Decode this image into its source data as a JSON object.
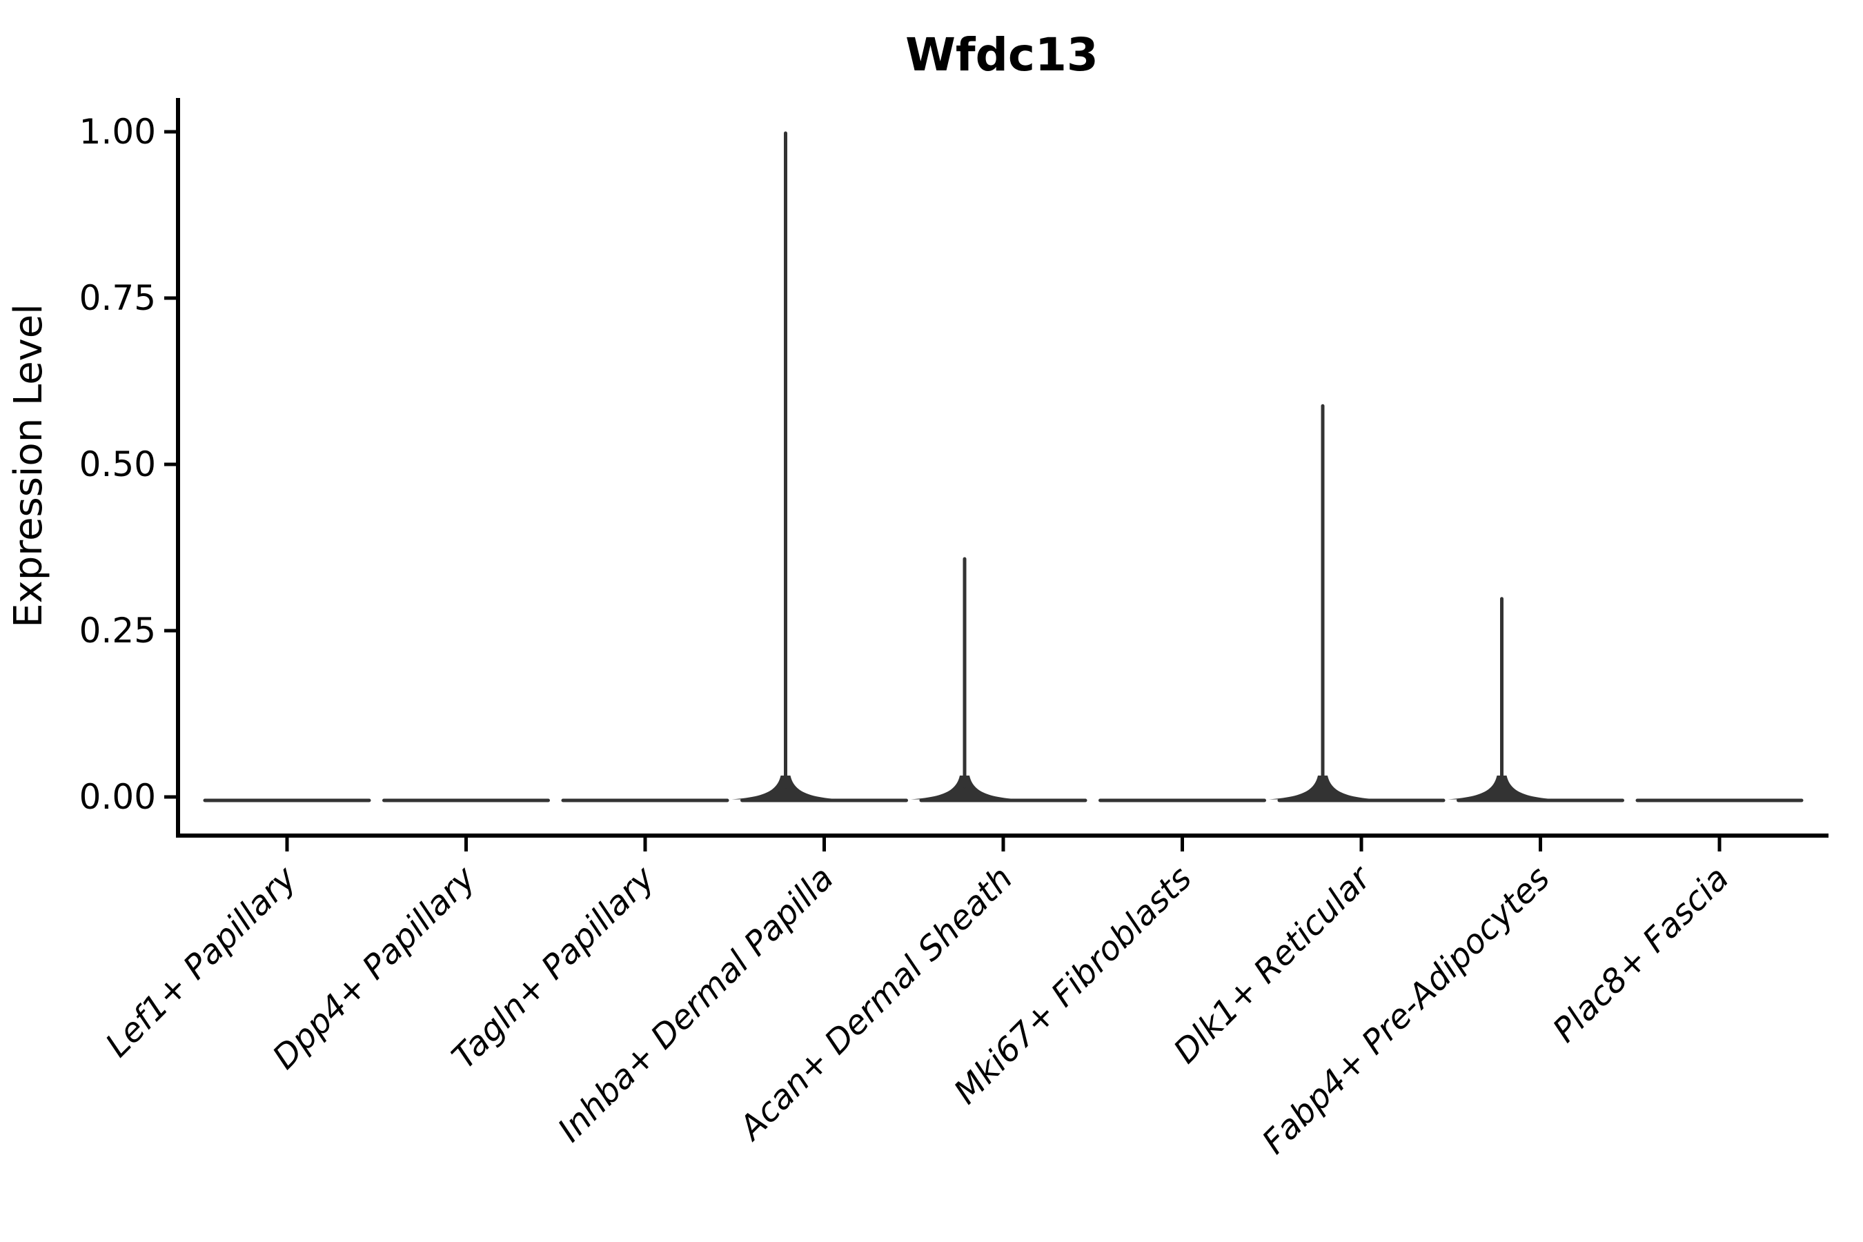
{
  "chart_data": {
    "type": "violin",
    "title": "Wfdc13",
    "ylabel": "Expression Level",
    "xlabel": "",
    "categories": [
      "Lef1+ Papillary",
      "Dpp4+ Papillary",
      "Tagln+ Papillary",
      "Inhba+ Dermal Papilla",
      "Acan+ Dermal Sheath",
      "Mki67+ Fibroblasts",
      "Dlk1+ Reticular",
      "Fabp4+ Pre-Adipocytes",
      "Plac8+ Fascia"
    ],
    "violins": [
      {
        "category": "Lef1+ Papillary",
        "baseline": 0.0,
        "max": 0.0
      },
      {
        "category": "Dpp4+ Papillary",
        "baseline": 0.0,
        "max": 0.0
      },
      {
        "category": "Tagln+ Papillary",
        "baseline": 0.0,
        "max": 0.0
      },
      {
        "category": "Inhba+ Dermal Papilla",
        "baseline": 0.0,
        "max": 1.0
      },
      {
        "category": "Acan+ Dermal Sheath",
        "baseline": 0.0,
        "max": 0.36
      },
      {
        "category": "Mki67+ Fibroblasts",
        "baseline": 0.0,
        "max": 0.0
      },
      {
        "category": "Dlk1+ Reticular",
        "baseline": 0.0,
        "max": 0.59
      },
      {
        "category": "Fabp4+ Pre-Adipocytes",
        "baseline": 0.0,
        "max": 0.3
      },
      {
        "category": "Plac8+ Fascia",
        "baseline": 0.0,
        "max": 0.0
      }
    ],
    "yticks": [
      0.0,
      0.25,
      0.5,
      0.75,
      1.0
    ],
    "ytick_labels": [
      "0.00",
      "0.25",
      "0.50",
      "0.75",
      "1.00"
    ],
    "ylim": [
      0,
      1.0
    ],
    "grid": false,
    "legend": false,
    "x_tick_label_rotation_deg": 45,
    "styles": {
      "violin_color": "#333333",
      "axis_color": "#000000",
      "text_color": "#000000",
      "background": "#ffffff"
    }
  }
}
